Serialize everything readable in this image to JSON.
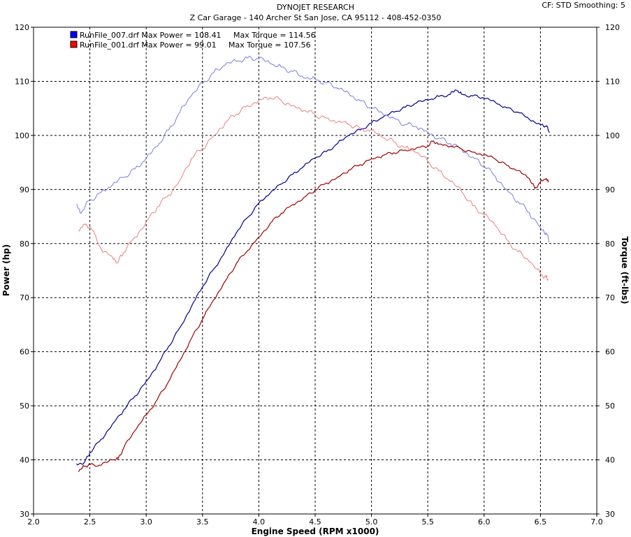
{
  "header": {
    "title": "DYNOJET RESEARCH",
    "subtitle": "Z Car Garage - 140 Archer St San Jose, CA 95112 - 408-452-0350",
    "cf_label": "CF: STD",
    "smoothing_label": "Smoothing: 5"
  },
  "chart_data": {
    "type": "line",
    "xlabel": "Engine Speed (RPM x1000)",
    "ylabel": "Power (hp)",
    "y2label": "Torque (ft-lbs)",
    "xlim": [
      2.0,
      7.0
    ],
    "ylim": [
      30,
      120
    ],
    "y2lim": [
      30,
      120
    ],
    "xticks": [
      "2.0",
      "2.5",
      "3.0",
      "3.5",
      "4.0",
      "4.5",
      "5.0",
      "5.5",
      "6.0",
      "6.5",
      "7.0"
    ],
    "yticks": [
      "30",
      "40",
      "50",
      "60",
      "70",
      "80",
      "90",
      "100",
      "110",
      "120"
    ],
    "grid": true,
    "legend_position": "top-left",
    "legend": [
      {
        "text": "RunFile_007.drf Max Power = 108.41     Max Torque = 114.56",
        "color": "#0000ff"
      },
      {
        "text": "RunFile_001.drf Max Power = 99.01     Max Torque = 107.56",
        "color": "#ff0000"
      }
    ],
    "series": [
      {
        "name": "RunFile_007.drf Power",
        "kind": "power",
        "color": "#00008b",
        "width": 1.2,
        "x": [
          2.38,
          2.45,
          2.5,
          2.6,
          2.7,
          2.8,
          2.9,
          3.0,
          3.1,
          3.2,
          3.3,
          3.4,
          3.5,
          3.6,
          3.7,
          3.8,
          3.9,
          4.0,
          4.1,
          4.2,
          4.3,
          4.4,
          4.5,
          4.6,
          4.7,
          4.8,
          4.9,
          5.0,
          5.1,
          5.2,
          5.3,
          5.4,
          5.5,
          5.6,
          5.7,
          5.75,
          5.8,
          5.9,
          6.0,
          6.1,
          6.2,
          6.3,
          6.4,
          6.5,
          6.55,
          6.58
        ],
        "y": [
          39.3,
          39.5,
          41.3,
          43.8,
          46.6,
          49.2,
          51.8,
          54.5,
          57.5,
          61.0,
          64.5,
          68.3,
          72.0,
          75.3,
          78.5,
          82.0,
          84.8,
          87.5,
          89.3,
          91.0,
          92.8,
          94.3,
          95.8,
          97.0,
          98.5,
          100.0,
          101.0,
          102.3,
          103.3,
          104.3,
          105.2,
          106.0,
          106.5,
          107.2,
          107.6,
          108.4,
          107.6,
          107.3,
          106.9,
          106.1,
          105.1,
          104.3,
          103.0,
          102.0,
          101.8,
          100.5
        ]
      },
      {
        "name": "RunFile_007.drf Torque",
        "kind": "torque",
        "color": "#7b7be0",
        "width": 1,
        "x": [
          2.38,
          2.42,
          2.5,
          2.6,
          2.7,
          2.8,
          2.9,
          3.0,
          3.1,
          3.2,
          3.3,
          3.4,
          3.5,
          3.6,
          3.7,
          3.8,
          3.9,
          4.0,
          4.1,
          4.2,
          4.3,
          4.4,
          4.5,
          4.6,
          4.7,
          4.8,
          4.9,
          5.0,
          5.1,
          5.2,
          5.3,
          5.4,
          5.5,
          5.6,
          5.7,
          5.8,
          5.9,
          6.0,
          6.1,
          6.2,
          6.3,
          6.4,
          6.5,
          6.55,
          6.58
        ],
        "y": [
          87.2,
          85.6,
          88.0,
          89.5,
          90.8,
          92.2,
          93.8,
          95.7,
          98.0,
          101.0,
          104.3,
          107.3,
          109.6,
          111.6,
          113.0,
          113.7,
          114.3,
          114.2,
          113.3,
          112.6,
          111.8,
          110.6,
          110.4,
          109.7,
          108.7,
          107.7,
          106.4,
          105.1,
          104.0,
          103.2,
          102.0,
          101.6,
          100.6,
          99.5,
          98.5,
          97.5,
          96.0,
          94.4,
          92.4,
          90.0,
          87.8,
          85.7,
          83.0,
          82.0,
          80.3
        ]
      },
      {
        "name": "RunFile_001.drf Power",
        "kind": "power",
        "color": "#a00000",
        "width": 1.2,
        "x": [
          2.4,
          2.45,
          2.5,
          2.6,
          2.7,
          2.75,
          2.8,
          2.9,
          3.0,
          3.1,
          3.2,
          3.3,
          3.4,
          3.5,
          3.6,
          3.7,
          3.8,
          3.9,
          4.0,
          4.1,
          4.2,
          4.3,
          4.4,
          4.5,
          4.6,
          4.7,
          4.8,
          4.9,
          5.0,
          5.1,
          5.2,
          5.3,
          5.4,
          5.5,
          5.55,
          5.6,
          5.7,
          5.8,
          5.9,
          6.0,
          6.1,
          6.2,
          6.3,
          6.4,
          6.45,
          6.5,
          6.55,
          6.57
        ],
        "y": [
          37.8,
          38.8,
          39.1,
          39.0,
          40.0,
          40.2,
          42.2,
          45.4,
          48.3,
          51.2,
          54.5,
          58.4,
          62.4,
          66.0,
          69.6,
          73.0,
          76.3,
          78.7,
          81.2,
          83.7,
          85.6,
          87.2,
          88.5,
          89.9,
          91.2,
          92.3,
          93.6,
          94.6,
          95.7,
          96.3,
          96.8,
          97.3,
          97.7,
          98.0,
          99.0,
          98.4,
          98.0,
          97.5,
          96.9,
          96.4,
          95.6,
          94.5,
          93.5,
          92.0,
          90.2,
          91.4,
          92.0,
          91.3
        ]
      },
      {
        "name": "RunFile_001.drf Torque",
        "kind": "torque",
        "color": "#ec7f7f",
        "width": 1,
        "x": [
          2.4,
          2.45,
          2.5,
          2.6,
          2.7,
          2.75,
          2.8,
          2.9,
          3.0,
          3.1,
          3.2,
          3.3,
          3.4,
          3.5,
          3.6,
          3.7,
          3.8,
          3.9,
          4.0,
          4.1,
          4.2,
          4.3,
          4.4,
          4.5,
          4.6,
          4.7,
          4.8,
          4.9,
          5.0,
          5.1,
          5.2,
          5.3,
          5.4,
          5.5,
          5.6,
          5.7,
          5.8,
          5.9,
          6.0,
          6.1,
          6.2,
          6.3,
          6.4,
          6.5,
          6.55,
          6.57
        ],
        "y": [
          82.5,
          83.6,
          83.2,
          79.0,
          77.5,
          76.6,
          78.4,
          81.2,
          84.0,
          86.8,
          89.0,
          91.8,
          95.7,
          97.6,
          100.0,
          102.3,
          104.0,
          105.5,
          106.5,
          107.0,
          106.5,
          105.5,
          104.6,
          103.8,
          103.2,
          102.5,
          102.0,
          101.3,
          100.9,
          99.6,
          98.8,
          97.7,
          96.8,
          95.2,
          93.4,
          91.5,
          89.6,
          87.0,
          85.3,
          83.3,
          80.7,
          78.5,
          76.7,
          74.4,
          73.8,
          73.3
        ]
      }
    ]
  }
}
